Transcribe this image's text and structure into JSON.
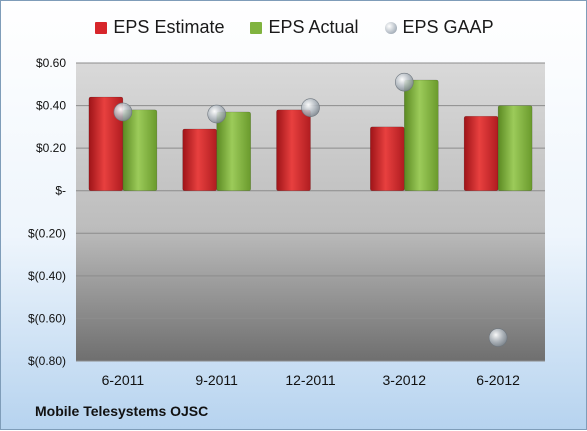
{
  "company": "Mobile Telesystems OJSC",
  "legend": [
    {
      "label": "EPS Estimate",
      "color": "#d7262b",
      "shape": "square"
    },
    {
      "label": "EPS Actual",
      "color": "#80b33f",
      "shape": "square"
    },
    {
      "label": "EPS GAAP",
      "color": "#b4bcc4",
      "shape": "circle"
    }
  ],
  "chart_data": {
    "type": "bar",
    "categories": [
      "6-2011",
      "9-2011",
      "12-2011",
      "3-2012",
      "6-2012"
    ],
    "series": [
      {
        "name": "EPS Estimate",
        "values": [
          0.44,
          0.29,
          0.38,
          0.3,
          0.35
        ],
        "color": "#d7262b"
      },
      {
        "name": "EPS Actual",
        "values": [
          0.38,
          0.37,
          null,
          0.52,
          0.4
        ],
        "color": "#80b33f"
      },
      {
        "name": "EPS GAAP",
        "values": [
          0.37,
          0.36,
          0.39,
          0.51,
          -0.69
        ],
        "color": "#b4bcc4",
        "marker": "circle"
      }
    ],
    "ylim": [
      -0.8,
      0.6
    ],
    "yticks": [
      0.6,
      0.4,
      0.2,
      0,
      -0.2,
      -0.4,
      -0.6,
      -0.8
    ],
    "ytick_labels": [
      "$0.60",
      "$0.40",
      "$0.20",
      "$-",
      "$(0.20)",
      "$(0.40)",
      "$(0.60)",
      "$(0.80)"
    ],
    "grid": true,
    "legend_position": "top"
  }
}
